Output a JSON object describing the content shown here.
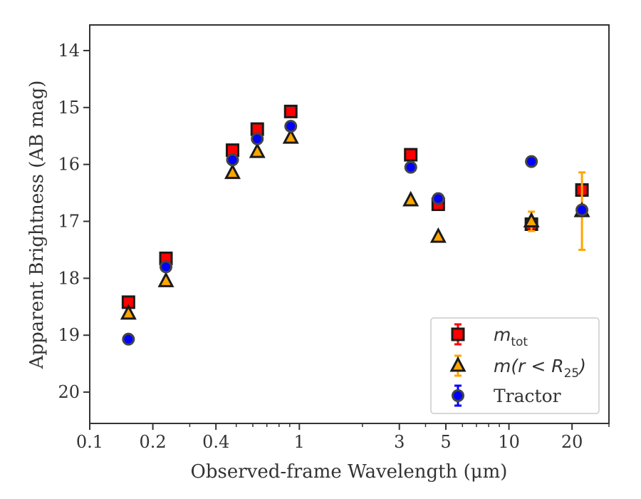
{
  "chart_data": {
    "type": "scatter",
    "xlabel": "Observed-frame Wavelength (μm)",
    "ylabel": "Apparent Brightness (AB mag)",
    "xscale": "log",
    "xlim": [
      0.1,
      30
    ],
    "ylim": [
      20.55,
      13.55
    ],
    "y_inverted": true,
    "x_ticks": [
      {
        "value": 0.1,
        "label": "0.1"
      },
      {
        "value": 0.2,
        "label": "0.2"
      },
      {
        "value": 0.4,
        "label": "0.4"
      },
      {
        "value": 1,
        "label": "1"
      },
      {
        "value": 3,
        "label": "3"
      },
      {
        "value": 5,
        "label": "5"
      },
      {
        "value": 10,
        "label": "10"
      },
      {
        "value": 20,
        "label": "20"
      }
    ],
    "y_ticks": [
      14,
      15,
      16,
      17,
      18,
      19,
      20
    ],
    "grid": false,
    "legend_position": "bottom-right",
    "series": [
      {
        "name": "m_tot",
        "legend_label": [
          "m",
          "tot",
          ""
        ],
        "marker": "square",
        "color": "#ff0000",
        "edge": "#1a1a1a",
        "errcolor": "#ff0000",
        "points": [
          {
            "x": 0.153,
            "y": 18.42,
            "err": 0.03
          },
          {
            "x": 0.231,
            "y": 17.65,
            "err": 0.03
          },
          {
            "x": 0.48,
            "y": 15.75,
            "err": 0.02
          },
          {
            "x": 0.63,
            "y": 15.38,
            "err": 0.02
          },
          {
            "x": 0.91,
            "y": 15.07,
            "err": 0.02
          },
          {
            "x": 3.4,
            "y": 15.83,
            "err": 0.02
          },
          {
            "x": 4.6,
            "y": 16.7,
            "err": 0.05
          },
          {
            "x": 12.8,
            "y": 17.05,
            "err": 0.05
          },
          {
            "x": 22.3,
            "y": 16.45,
            "err": 0.05
          }
        ]
      },
      {
        "name": "m(r<R25)",
        "legend_label": [
          "m(r < R",
          "25",
          ")"
        ],
        "marker": "triangle",
        "color": "#ffa500",
        "edge": "#1a1a1a",
        "errcolor": "#ffa500",
        "points": [
          {
            "x": 0.153,
            "y": 18.62,
            "err": 0.03
          },
          {
            "x": 0.231,
            "y": 18.05,
            "err": 0.03
          },
          {
            "x": 0.48,
            "y": 16.15,
            "err": 0.02
          },
          {
            "x": 0.63,
            "y": 15.78,
            "err": 0.02
          },
          {
            "x": 0.91,
            "y": 15.53,
            "err": 0.02
          },
          {
            "x": 3.4,
            "y": 16.63,
            "err": 0.02
          },
          {
            "x": 4.6,
            "y": 17.27,
            "err": 0.02
          },
          {
            "x": 12.8,
            "y": 17.0,
            "err": 0.17
          },
          {
            "x": 22.3,
            "y": 16.82,
            "err": 0.68
          }
        ]
      },
      {
        "name": "Tractor",
        "legend_label": [
          "Tractor",
          "",
          ""
        ],
        "marker": "circle",
        "color": "#0000ff",
        "edge": "#444444",
        "errcolor": "#0000ff",
        "points": [
          {
            "x": 0.153,
            "y": 19.07,
            "err": 0.07
          },
          {
            "x": 0.231,
            "y": 17.8,
            "err": 0.03
          },
          {
            "x": 0.48,
            "y": 15.92,
            "err": 0.02
          },
          {
            "x": 0.63,
            "y": 15.55,
            "err": 0.02
          },
          {
            "x": 0.91,
            "y": 15.33,
            "err": 0.02
          },
          {
            "x": 3.4,
            "y": 16.05,
            "err": 0.02
          },
          {
            "x": 4.6,
            "y": 16.6,
            "err": 0.07
          },
          {
            "x": 12.8,
            "y": 15.95,
            "err": 0.06
          },
          {
            "x": 22.3,
            "y": 16.8,
            "err": 0.06
          }
        ]
      }
    ]
  }
}
